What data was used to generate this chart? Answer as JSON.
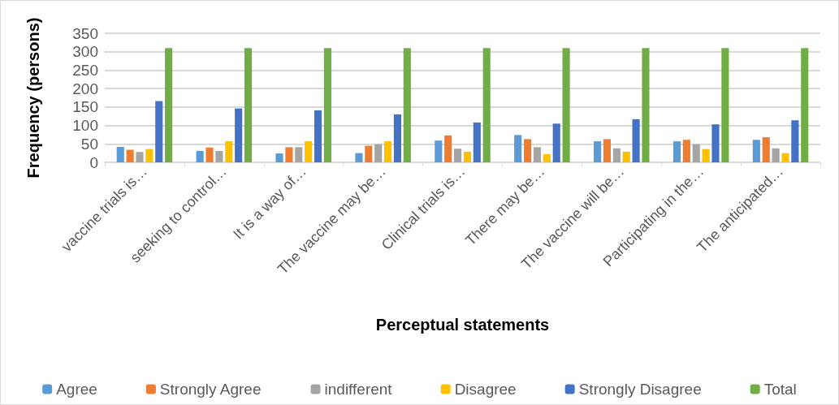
{
  "chart_data": {
    "type": "bar",
    "xlabel": "Perceptual statements",
    "ylabel": "Frequency (persons)",
    "categories": [
      "vaccine trials is…",
      "seeking to control…",
      "It is a way of…",
      "The vaccine may be…",
      "Clinical trials is…",
      "There may be…",
      "The vaccine will be…",
      "Participating in the…",
      "The anticipated…"
    ],
    "series": [
      {
        "name": "Agree",
        "color": "#5b9bd5",
        "values": [
          42,
          31,
          24,
          25,
          59,
          74,
          57,
          57,
          61
        ]
      },
      {
        "name": "Strongly Agree",
        "color": "#ed7d31",
        "values": [
          34,
          40,
          41,
          45,
          73,
          63,
          63,
          61,
          68
        ]
      },
      {
        "name": "indifferent",
        "color": "#a5a5a5",
        "values": [
          28,
          31,
          41,
          49,
          37,
          41,
          38,
          49,
          38
        ]
      },
      {
        "name": "Disagree",
        "color": "#ffc000",
        "values": [
          36,
          57,
          57,
          57,
          29,
          22,
          29,
          36,
          25
        ]
      },
      {
        "name": "Strongly Disagree",
        "color": "#4472c4",
        "values": [
          166,
          146,
          141,
          130,
          108,
          105,
          117,
          103,
          114
        ]
      },
      {
        "name": "Total",
        "color": "#70ad47",
        "values": [
          310,
          310,
          310,
          310,
          310,
          310,
          310,
          310,
          310
        ]
      }
    ],
    "ylim": [
      0,
      350
    ],
    "yticks": [
      0,
      50,
      100,
      150,
      200,
      250,
      300,
      350
    ],
    "grid": "y",
    "legend": "bottom"
  }
}
